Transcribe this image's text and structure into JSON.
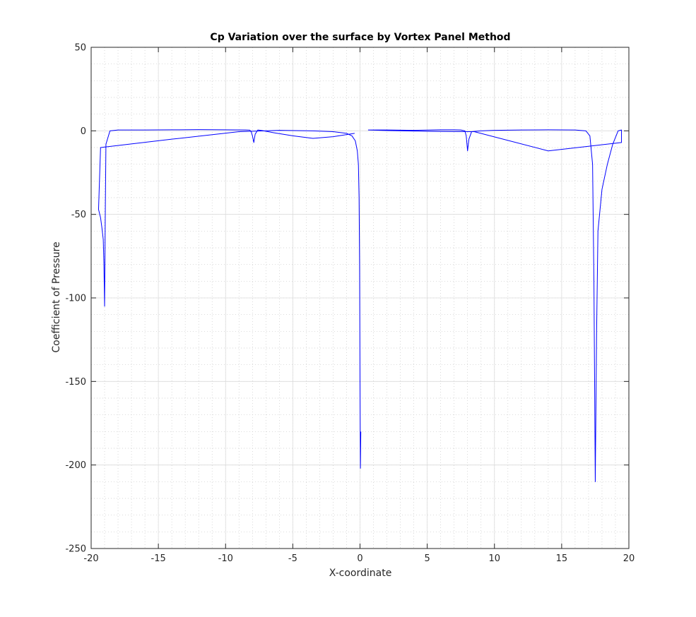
{
  "chart_data": {
    "type": "line",
    "title": "Cp Variation over the surface by Vortex Panel Method",
    "xlabel": "X-coordinate",
    "ylabel": "Coefficient of Pressure",
    "xlim": [
      -20,
      20
    ],
    "ylim": [
      -250,
      50
    ],
    "xticks": [
      -20,
      -15,
      -10,
      -5,
      0,
      5,
      10,
      15,
      20
    ],
    "yticks": [
      -250,
      -200,
      -150,
      -100,
      -50,
      0,
      50
    ],
    "xtick_labels": [
      "-20",
      "-15",
      "-10",
      "-5",
      "0",
      "5",
      "10",
      "15",
      "20"
    ],
    "ytick_labels": [
      "-250",
      "-200",
      "-150",
      "-100",
      "-50",
      "0",
      "50"
    ],
    "grid": true,
    "minor_grid": true,
    "box": true,
    "series": [
      {
        "color": "#0000ff",
        "segments": [
          {
            "x": [
              -0.4,
              -2.0,
              -3.5,
              -5.0,
              -6.5,
              -7.3,
              -7.6,
              -7.8,
              -7.9,
              -8.0,
              -8.1,
              -8.2,
              -8.5,
              -10.0,
              -12.0,
              -14.0,
              -16.0,
              -18.0,
              -18.6,
              -18.9,
              -18.95,
              -19.0,
              -19.05,
              -19.1,
              -19.2,
              -19.3,
              -19.45,
              -19.3,
              -14.0,
              -9.0,
              -6.0,
              -3.5,
              -2.0,
              -1.0,
              -0.6,
              -0.35,
              -0.2,
              -0.12,
              -0.07,
              -0.03,
              0.0,
              0.03,
              0.06
            ],
            "y": [
              -1.5,
              -3.5,
              -4.5,
              -3.0,
              -1.0,
              0.2,
              0.5,
              -2.0,
              -7.0,
              -3.0,
              -0.5,
              0.4,
              0.5,
              0.6,
              0.7,
              0.6,
              0.5,
              0.5,
              0.0,
              -8.0,
              -50.0,
              -105.0,
              -80.0,
              -65.0,
              -58.0,
              -52.0,
              -47.0,
              -10.0,
              -5.0,
              -0.5,
              0.3,
              0.0,
              -0.5,
              -1.5,
              -3.0,
              -6.0,
              -12.0,
              -20.0,
              -40.0,
              -80.0,
              -150.0,
              -202.0,
              -180.0
            ]
          },
          {
            "x": [
              0.6,
              2.0,
              4.0,
              6.0,
              7.0,
              7.5,
              7.8,
              7.9,
              8.0,
              8.1,
              8.3,
              9.0,
              10.0,
              12.0,
              14.0,
              16.0,
              16.8,
              17.1,
              17.3,
              17.4,
              17.5,
              17.6,
              17.7,
              18.0,
              18.4,
              18.8,
              19.2,
              19.45,
              19.45,
              14.0,
              8.5,
              8.3,
              5.0,
              2.0,
              0.6
            ],
            "y": [
              0.5,
              0.5,
              0.3,
              0.6,
              0.6,
              0.5,
              0.0,
              -3.0,
              -12.0,
              -5.0,
              -0.5,
              0.0,
              0.3,
              0.5,
              0.6,
              0.5,
              0.0,
              -3.0,
              -20.0,
              -90.0,
              -210.0,
              -120.0,
              -60.0,
              -35.0,
              -20.0,
              -8.0,
              0.0,
              0.5,
              -7.0,
              -12.0,
              -0.5,
              -0.5,
              -0.3,
              0.2,
              0.5
            ]
          }
        ]
      }
    ]
  }
}
